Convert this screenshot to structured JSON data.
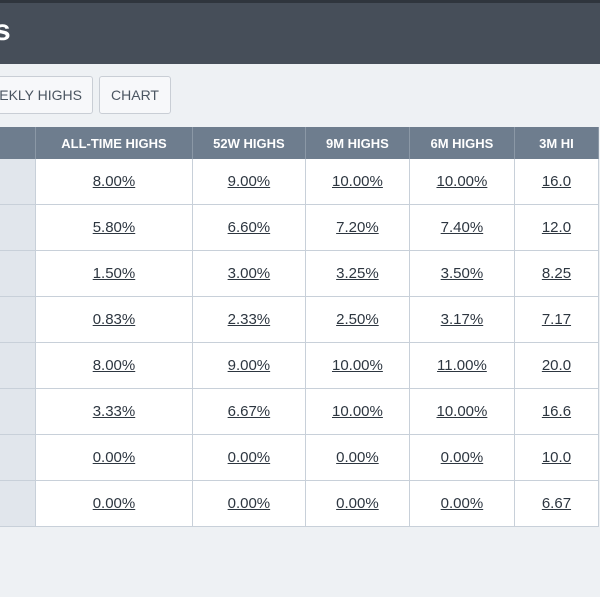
{
  "header": {
    "title": "s"
  },
  "toolbar": {
    "weekly_highs_label": "EKLY HIGHS",
    "chart_label": "CHART"
  },
  "table": {
    "columns": [
      "",
      "ALL-TIME HIGHS",
      "52W HIGHS",
      "9M HIGHS",
      "6M HIGHS",
      "3M HI"
    ],
    "rows": [
      [
        "",
        "8.00%",
        "9.00%",
        "10.00%",
        "10.00%",
        "16.0"
      ],
      [
        "",
        "5.80%",
        "6.60%",
        "7.20%",
        "7.40%",
        "12.0"
      ],
      [
        "",
        "1.50%",
        "3.00%",
        "3.25%",
        "3.50%",
        "8.25"
      ],
      [
        "",
        "0.83%",
        "2.33%",
        "2.50%",
        "3.17%",
        "7.17"
      ],
      [
        "",
        "8.00%",
        "9.00%",
        "10.00%",
        "11.00%",
        "20.0"
      ],
      [
        "",
        "3.33%",
        "6.67%",
        "10.00%",
        "10.00%",
        "16.6"
      ],
      [
        "",
        "0.00%",
        "0.00%",
        "0.00%",
        "0.00%",
        "10.0"
      ],
      [
        "",
        "0.00%",
        "0.00%",
        "0.00%",
        "0.00%",
        "6.67"
      ]
    ]
  },
  "colors": {
    "header_bg": "#464e59",
    "table_header_bg": "#6e7d8e",
    "label_cell_bg": "#e1e6ec",
    "page_bg": "#eef1f4"
  }
}
